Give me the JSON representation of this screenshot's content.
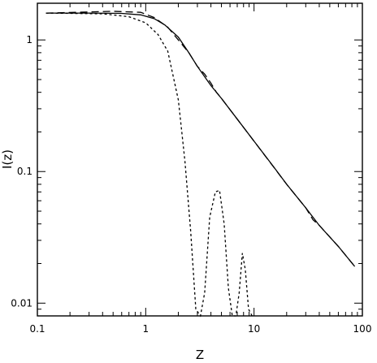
{
  "chart_data": {
    "type": "line",
    "xlabel": "Z",
    "ylabel": "I(z)",
    "xscale": "log",
    "yscale": "log",
    "xlim": [
      0.1,
      100
    ],
    "ylim": [
      0.008,
      1.9
    ],
    "grid": false,
    "legend": "none",
    "x_ticks": [
      {
        "value": 0.1,
        "label": "0.1"
      },
      {
        "value": 1,
        "label": "1"
      },
      {
        "value": 10,
        "label": "10"
      },
      {
        "value": 100,
        "label": "100"
      }
    ],
    "y_ticks": [
      {
        "value": 0.01,
        "label": "0.01"
      },
      {
        "value": 0.1,
        "label": "0.1"
      },
      {
        "value": 1,
        "label": "1"
      }
    ],
    "series": [
      {
        "style": "solid",
        "x": [
          0.12,
          0.3,
          0.6,
          0.9,
          1.2,
          1.5,
          2.0,
          2.5,
          3.0,
          4.0,
          5.0,
          7.0,
          10,
          15,
          20,
          30,
          40,
          60,
          85
        ],
        "y": [
          1.6,
          1.6,
          1.59,
          1.55,
          1.45,
          1.3,
          1.05,
          0.8,
          0.63,
          0.45,
          0.36,
          0.25,
          0.17,
          0.11,
          0.08,
          0.053,
          0.039,
          0.027,
          0.019
        ]
      },
      {
        "style": "dashed",
        "x": [
          0.12,
          0.5,
          0.9,
          1.2,
          1.6,
          2.0,
          2.5,
          3.0,
          3.5,
          4.0,
          4.5,
          5.0,
          7.0,
          10,
          20,
          30,
          35,
          40,
          60,
          85
        ],
        "y": [
          1.6,
          1.65,
          1.62,
          1.48,
          1.25,
          1.0,
          0.8,
          0.63,
          0.55,
          0.47,
          0.4,
          0.36,
          0.25,
          0.17,
          0.08,
          0.053,
          0.043,
          0.039,
          0.027,
          0.019
        ]
      },
      {
        "style": "dotted",
        "x": [
          0.12,
          0.4,
          0.7,
          1.0,
          1.3,
          1.6,
          2.0,
          2.3,
          2.6,
          2.9,
          3.2,
          3.5,
          3.9,
          4.4,
          4.8,
          5.3,
          5.8,
          6.3,
          6.8,
          7.3,
          7.8,
          8.3,
          8.9,
          9.6
        ],
        "y": [
          1.6,
          1.58,
          1.5,
          1.35,
          1.1,
          0.82,
          0.35,
          0.12,
          0.035,
          0.009,
          0.008,
          0.012,
          0.045,
          0.07,
          0.072,
          0.04,
          0.013,
          0.008,
          0.008,
          0.012,
          0.024,
          0.018,
          0.009,
          0.008
        ]
      }
    ]
  }
}
